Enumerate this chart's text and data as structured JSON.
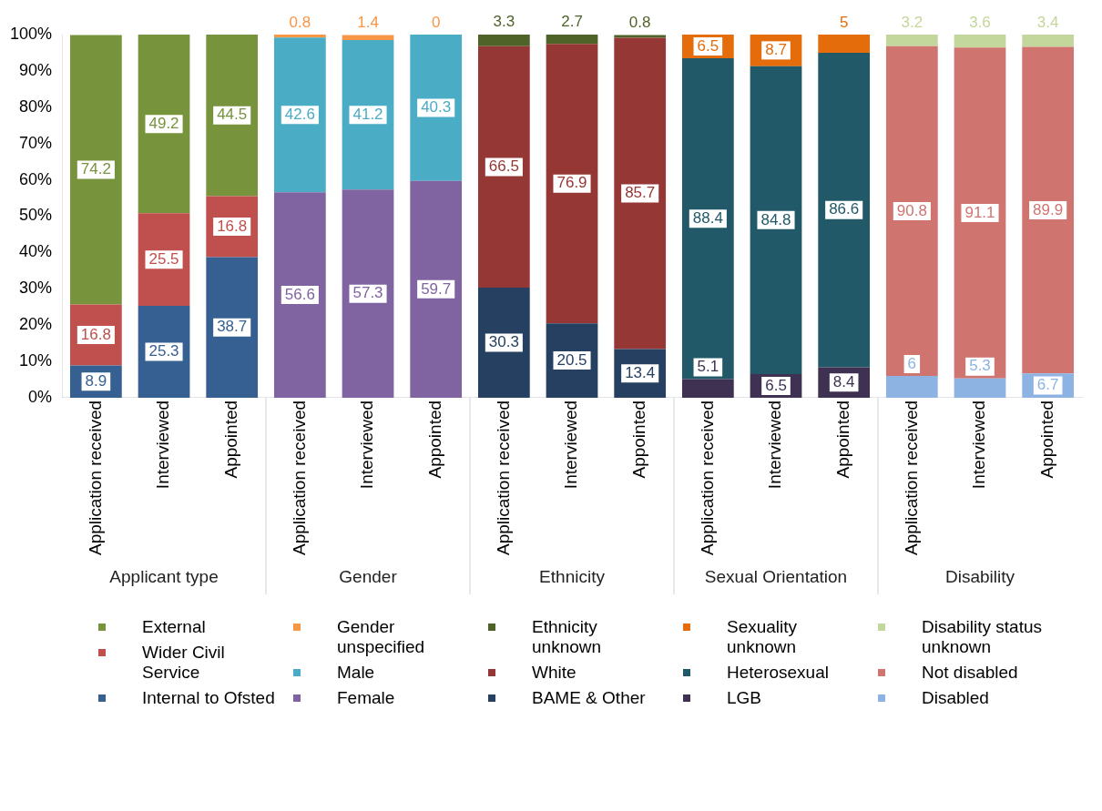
{
  "chart_data": {
    "type": "bar",
    "stacked": true,
    "data_labels": true,
    "grid": false,
    "legend": "bottom",
    "categories": [
      "Application received",
      "Interviewed",
      "Appointed",
      "Application received",
      "Interviewed",
      "Appointed",
      "Application received",
      "Interviewed",
      "Appointed",
      "Application received",
      "Interviewed",
      "Appointed",
      "Application received",
      "Interviewed",
      "Appointed"
    ],
    "annotations": [
      "Applicant type",
      "Gender",
      "Ethnicity",
      "Sexual Orientation",
      "Disability"
    ],
    "ylim": [
      0,
      100
    ],
    "yticks": [
      {
        "value": 0,
        "label": "0%"
      },
      {
        "value": 10,
        "label": "10%"
      },
      {
        "value": 20,
        "label": "20%"
      },
      {
        "value": 30,
        "label": "30%"
      },
      {
        "value": 40,
        "label": "40%"
      },
      {
        "value": 50,
        "label": "50%"
      },
      {
        "value": 60,
        "label": "60%"
      },
      {
        "value": 70,
        "label": "70%"
      },
      {
        "value": 80,
        "label": "80%"
      },
      {
        "value": 90,
        "label": "90%"
      },
      {
        "value": 100,
        "label": "100%"
      }
    ],
    "series": [
      {
        "name": "Internal to Ofsted",
        "color": "#376092",
        "values": [
          8.9,
          25.3,
          38.7,
          null,
          null,
          null,
          null,
          null,
          null,
          null,
          null,
          null,
          null,
          null,
          null
        ]
      },
      {
        "name": "Wider Civil Service",
        "color": "#c0504d",
        "values": [
          16.8,
          25.5,
          16.8,
          null,
          null,
          null,
          null,
          null,
          null,
          null,
          null,
          null,
          null,
          null,
          null
        ]
      },
      {
        "name": "External",
        "color": "#77933c",
        "values": [
          74.2,
          49.2,
          44.5,
          null,
          null,
          null,
          null,
          null,
          null,
          null,
          null,
          null,
          null,
          null,
          null
        ]
      },
      {
        "name": "Female",
        "color": "#8064a2",
        "values": [
          null,
          null,
          null,
          56.6,
          57.3,
          59.7,
          null,
          null,
          null,
          null,
          null,
          null,
          null,
          null,
          null
        ]
      },
      {
        "name": "Male",
        "color": "#4bacc6",
        "values": [
          null,
          null,
          null,
          42.6,
          41.2,
          40.3,
          null,
          null,
          null,
          null,
          null,
          null,
          null,
          null,
          null
        ]
      },
      {
        "name": "Gender unspecified",
        "color": "#f79646",
        "values": [
          null,
          null,
          null,
          0.8,
          1.4,
          0,
          null,
          null,
          null,
          null,
          null,
          null,
          null,
          null,
          null
        ]
      },
      {
        "name": "BAME & Other",
        "color": "#254061",
        "values": [
          null,
          null,
          null,
          null,
          null,
          null,
          30.3,
          20.5,
          13.4,
          null,
          null,
          null,
          null,
          null,
          null
        ]
      },
      {
        "name": "White",
        "color": "#953735",
        "values": [
          null,
          null,
          null,
          null,
          null,
          null,
          66.5,
          76.9,
          85.7,
          null,
          null,
          null,
          null,
          null,
          null
        ]
      },
      {
        "name": "Ethnicity unknown",
        "color": "#4f6228",
        "values": [
          null,
          null,
          null,
          null,
          null,
          null,
          3.3,
          2.7,
          0.8,
          null,
          null,
          null,
          null,
          null,
          null
        ]
      },
      {
        "name": "LGB",
        "color": "#3f3151",
        "values": [
          null,
          null,
          null,
          null,
          null,
          null,
          null,
          null,
          null,
          5.1,
          6.5,
          8.4,
          null,
          null,
          null
        ]
      },
      {
        "name": "Heterosexual",
        "color": "#215968",
        "values": [
          null,
          null,
          null,
          null,
          null,
          null,
          null,
          null,
          null,
          88.4,
          84.8,
          86.6,
          null,
          null,
          null
        ]
      },
      {
        "name": "Sexuality unknown",
        "color": "#e46c0a",
        "values": [
          null,
          null,
          null,
          null,
          null,
          null,
          null,
          null,
          null,
          6.5,
          8.7,
          5,
          null,
          null,
          null
        ]
      },
      {
        "name": "Disabled",
        "color": "#8db3e2",
        "values": [
          null,
          null,
          null,
          null,
          null,
          null,
          null,
          null,
          null,
          null,
          null,
          null,
          6,
          5.3,
          6.7
        ]
      },
      {
        "name": "Not disabled",
        "color": "#d07470",
        "values": [
          null,
          null,
          null,
          null,
          null,
          null,
          null,
          null,
          null,
          null,
          null,
          null,
          90.8,
          91.1,
          89.9
        ]
      },
      {
        "name": "Disability status unknown",
        "color": "#c3d69b",
        "values": [
          null,
          null,
          null,
          null,
          null,
          null,
          null,
          null,
          null,
          null,
          null,
          null,
          3.2,
          3.6,
          3.4
        ]
      }
    ]
  }
}
